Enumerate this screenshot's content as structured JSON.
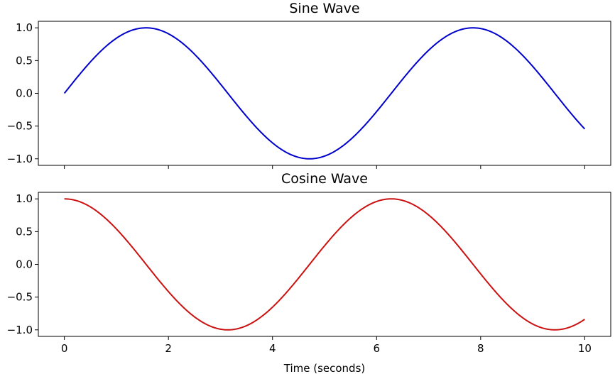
{
  "chart_data": [
    {
      "type": "line",
      "title": "Sine Wave",
      "xlabel": "",
      "ylabel": "",
      "xlim": [
        -0.5,
        10.5
      ],
      "ylim": [
        -1.1,
        1.1
      ],
      "xticks": [
        0,
        2,
        4,
        6,
        8,
        10
      ],
      "xtick_labels_visible": false,
      "yticks": [
        -1.0,
        -0.5,
        0.0,
        0.5,
        1.0
      ],
      "ytick_labels": [
        "−1.0",
        "−0.5",
        "0.0",
        "0.5",
        "1.0"
      ],
      "grid": false,
      "series": [
        {
          "function": "sin",
          "color": "#0000cc",
          "x": [
            0.0,
            0.5,
            1.0,
            1.5,
            2.0,
            2.5,
            3.0,
            3.5,
            4.0,
            4.5,
            5.0,
            5.5,
            6.0,
            6.5,
            7.0,
            7.5,
            8.0,
            8.5,
            9.0,
            9.5,
            10.0
          ],
          "values": [
            0.0,
            0.479,
            0.841,
            0.997,
            0.909,
            0.598,
            0.141,
            -0.351,
            -0.757,
            -0.978,
            -0.959,
            -0.706,
            -0.279,
            0.215,
            0.657,
            0.938,
            0.989,
            0.798,
            0.412,
            -0.075,
            -0.544
          ]
        }
      ]
    },
    {
      "type": "line",
      "title": "Cosine Wave",
      "xlabel": "Time (seconds)",
      "ylabel": "",
      "xlim": [
        -0.5,
        10.5
      ],
      "ylim": [
        -1.1,
        1.1
      ],
      "xticks": [
        0,
        2,
        4,
        6,
        8,
        10
      ],
      "xtick_labels": [
        "0",
        "2",
        "4",
        "6",
        "8",
        "10"
      ],
      "yticks": [
        -1.0,
        -0.5,
        0.0,
        0.5,
        1.0
      ],
      "ytick_labels": [
        "−1.0",
        "−0.5",
        "0.0",
        "0.5",
        "1.0"
      ],
      "grid": false,
      "series": [
        {
          "function": "cos",
          "color": "#cc1111",
          "x": [
            0.0,
            0.5,
            1.0,
            1.5,
            2.0,
            2.5,
            3.0,
            3.5,
            4.0,
            4.5,
            5.0,
            5.5,
            6.0,
            6.5,
            7.0,
            7.5,
            8.0,
            8.5,
            9.0,
            9.5,
            10.0
          ],
          "values": [
            1.0,
            0.878,
            0.54,
            0.071,
            -0.416,
            -0.801,
            -0.99,
            -0.936,
            -0.654,
            -0.211,
            0.284,
            0.709,
            0.96,
            0.977,
            0.754,
            0.347,
            -0.146,
            -0.602,
            -0.911,
            -0.997,
            -0.839
          ]
        }
      ]
    }
  ]
}
